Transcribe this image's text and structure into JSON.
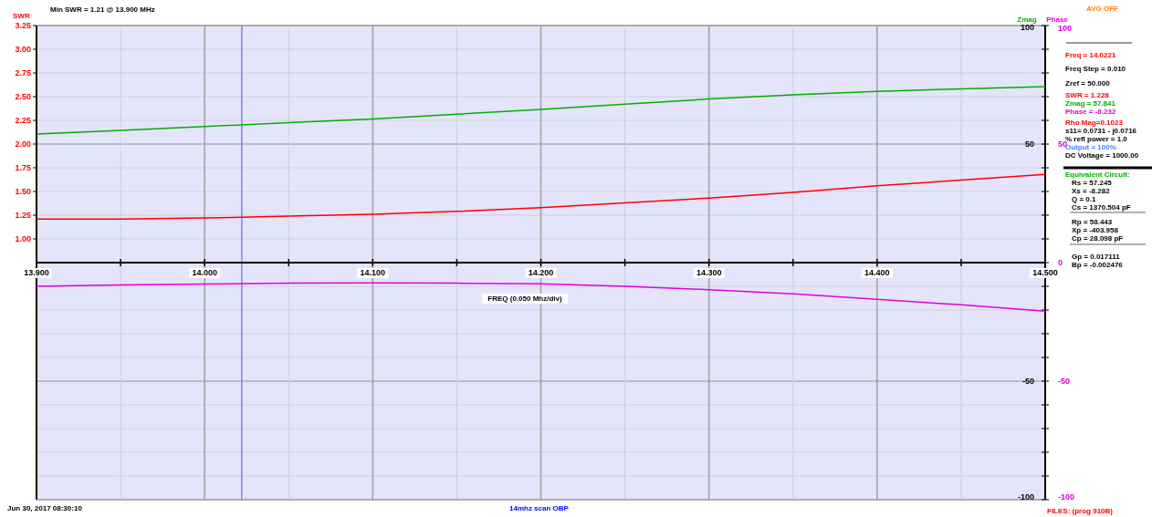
{
  "chart_data": {
    "type": "line",
    "title": "Min SWR =  1.21 @  13.900 MHz",
    "xlabel": "FREQ (0.050 Mhz/div)",
    "x": [
      13.9,
      13.95,
      14.0,
      14.05,
      14.1,
      14.15,
      14.2,
      14.25,
      14.3,
      14.35,
      14.4,
      14.45,
      14.5
    ],
    "series": [
      {
        "name": "SWR",
        "color": "#ff0000",
        "values": [
          1.21,
          1.21,
          1.22,
          1.24,
          1.26,
          1.29,
          1.33,
          1.38,
          1.43,
          1.49,
          1.56,
          1.62,
          1.68
        ]
      },
      {
        "name": "Zmag",
        "color": "#00b000",
        "axis": "y2",
        "values": [
          54.2,
          55.8,
          57.4,
          59,
          60.6,
          62.6,
          64.6,
          66.8,
          69,
          70.8,
          72.2,
          73.3,
          74.2
        ]
      },
      {
        "name": "Phase",
        "color": "#e000e0",
        "axis": "y3",
        "values": [
          -10,
          -9.4,
          -9,
          -8.7,
          -8.6,
          -8.7,
          -8.9,
          -10,
          -11.4,
          -13.2,
          -15.5,
          -17.8,
          -20.5
        ]
      }
    ],
    "xlim": [
      13.9,
      14.5
    ],
    "xticks": [
      {
        "value": 13.9,
        "label": "13.900"
      },
      {
        "value": 13.95,
        "label": null
      },
      {
        "value": 14.0,
        "label": "14.000"
      },
      {
        "value": 14.05,
        "label": null
      },
      {
        "value": 14.1,
        "label": "14.100"
      },
      {
        "value": 14.15,
        "label": null
      },
      {
        "value": 14.2,
        "label": "14.200"
      },
      {
        "value": 14.25,
        "label": null
      },
      {
        "value": 14.3,
        "label": "14.300"
      },
      {
        "value": 14.35,
        "label": null
      },
      {
        "value": 14.4,
        "label": "14.400"
      },
      {
        "value": 14.45,
        "label": null
      },
      {
        "value": 14.5,
        "label": "14.500"
      }
    ],
    "ylim": [
      -1.75,
      3.25
    ],
    "yticks": [
      {
        "value": 1,
        "label": "1.00"
      },
      1.25,
      {
        "value": 1.5,
        "label": "1.50"
      },
      1.75,
      {
        "value": 2,
        "label": "2.00"
      },
      2.25,
      {
        "value": 2.5,
        "label": "2.50"
      },
      2.75,
      {
        "value": 3,
        "label": "3.00"
      },
      3.25
    ],
    "y2lim": [
      -100,
      100
    ],
    "y2ticks": [
      -100,
      -50,
      50,
      100
    ],
    "y3lim": [
      -100,
      100
    ],
    "y3ticks": [
      -100,
      {
        "value": -90,
        "label": null
      },
      {
        "value": -80,
        "label": null
      },
      {
        "value": -70,
        "label": null
      },
      {
        "value": -60,
        "label": null
      },
      -50,
      {
        "value": -40,
        "label": null
      },
      {
        "value": -30,
        "label": null
      },
      {
        "value": -20,
        "label": null
      },
      {
        "value": -10,
        "label": null
      },
      0,
      {
        "value": 10,
        "label": null
      },
      {
        "value": 20,
        "label": null
      },
      {
        "value": 30,
        "label": null
      },
      {
        "value": 40,
        "label": null
      },
      50,
      {
        "value": 60,
        "label": null
      },
      {
        "value": 70,
        "label": null
      },
      {
        "value": 80,
        "label": null
      },
      {
        "value": 90,
        "label": null
      },
      100
    ],
    "grid": true,
    "ref_lines": [
      {
        "axis": "x",
        "value": 14.0221,
        "label": null,
        "color": "#8080ff"
      }
    ],
    "annotations": [
      "AVG OFF",
      "Freq = 14.0221",
      "Freq Step = 0.010",
      "Zref =   50.000",
      "SWR  =    1.228",
      "Zmag =   57.841",
      "Phase =    -8.232",
      "Rho Mag=0.1023",
      "s11= 0.0731 - j0.0716",
      "% refl power =  1.0",
      "Output =  100%",
      "DC Voltage =  1000.00",
      "Equivalent Circuit:",
      "Rs =   57.245",
      "Xs =   -8.282",
      "Q =  0.1",
      "Cs = 1370.504  pF",
      "Rp =   58.443",
      "Xp = -403.958",
      "Cp =   28.098  pF",
      "Gp =  0.017111",
      "Bp = -0.002476",
      "Jun 30, 2017  08:30:10",
      "14mhz scan OBP",
      "FILES:  (prog 910B)"
    ]
  }
}
